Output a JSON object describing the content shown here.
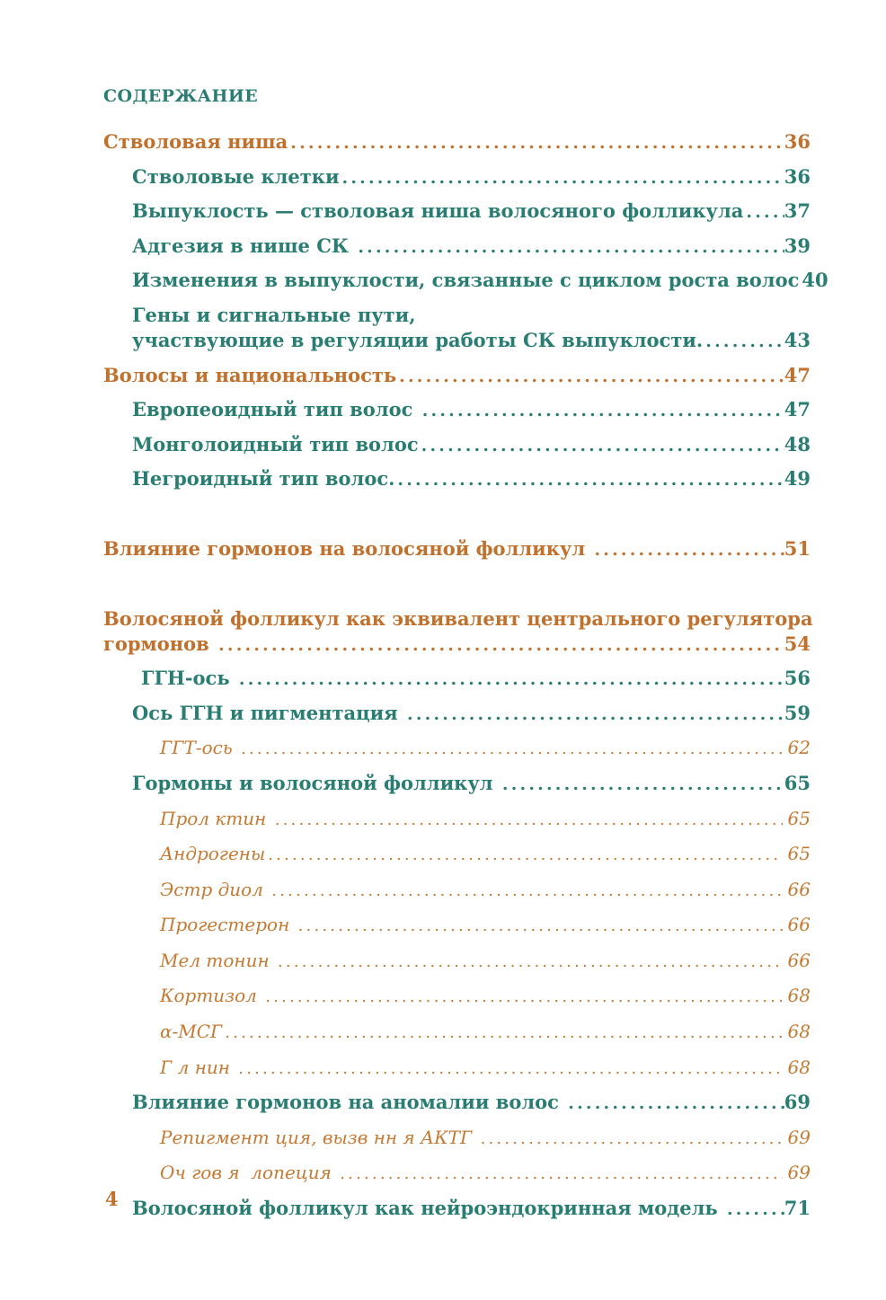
{
  "header": {
    "title": "СОДЕРЖАНИЕ"
  },
  "footer": {
    "page_number": "4"
  },
  "colors": {
    "paper": "#ffffff",
    "chapter_orange": "#c0712d",
    "section_teal": "#2a7d72",
    "subitem_orange": "#c57a33"
  },
  "toc": [
    {
      "level": 1,
      "title": "Стволовая ниша",
      "page": "36"
    },
    {
      "level": 2,
      "title": "Стволовые клетки",
      "page": "36"
    },
    {
      "level": 2,
      "title": "Выпуклость — стволовая ниша волосяного фолликула",
      "page": "37"
    },
    {
      "level": 2,
      "title": "Адгезия в нише СК ",
      "page": "39"
    },
    {
      "level": 2,
      "title": "Изменения в выпуклости, связанные с циклом роста волос",
      "page": "40"
    },
    {
      "level": 2,
      "lines": [
        "Гены и сигнальные пути,"
      ],
      "title": "участвующие в регуляции работы СК выпуклости.",
      "page": "43"
    },
    {
      "level": 1,
      "title": "Волосы и национальность",
      "page": "47"
    },
    {
      "level": 2,
      "title": "Европеоидный тип волос ",
      "page": "47"
    },
    {
      "level": 2,
      "title": "Монголоидный тип волос",
      "page": "48"
    },
    {
      "level": 2,
      "title": "Негроидный тип волос.",
      "page": "49"
    },
    {
      "spacer": true
    },
    {
      "level": 1,
      "title": "Влияние гормонов на волосяной фолликул ",
      "page": "51"
    },
    {
      "spacer": true
    },
    {
      "level": 1,
      "lines": [
        "Волосяной фолликул как эквивалент центрального регулятора"
      ],
      "title": "гормонов ",
      "page": "54"
    },
    {
      "level": 2,
      "shift": true,
      "title": "ГГН-ось ",
      "page": "56"
    },
    {
      "level": 2,
      "title": "Ось ГГН и пигментация ",
      "page": "59"
    },
    {
      "level": 3,
      "title": "ГГТ-ось ",
      "page": "62"
    },
    {
      "level": 2,
      "title": "Гормоны и волосяной фолликул ",
      "page": "65"
    },
    {
      "level": 3,
      "title": "Прол ктин ",
      "page": "65"
    },
    {
      "level": 3,
      "title": "Андрогены",
      "page": "65"
    },
    {
      "level": 3,
      "title": "Эстр диол ",
      "page": "66"
    },
    {
      "level": 3,
      "title": "Прогестерон ",
      "page": "66"
    },
    {
      "level": 3,
      "title": "Мел тонин ",
      "page": "66"
    },
    {
      "level": 3,
      "title": "Кортизол ",
      "page": "68"
    },
    {
      "level": 3,
      "title": "α-МСГ",
      "page": "68"
    },
    {
      "level": 3,
      "title": "Г л нин ",
      "page": "68"
    },
    {
      "level": 2,
      "title": "Влияние гормонов на аномалии волос ",
      "page": "69"
    },
    {
      "level": 3,
      "title": "Репигмент ция, вызв нн я АКТГ ",
      "page": "69"
    },
    {
      "level": 3,
      "title": "Оч гов я  лопеция ",
      "page": "69"
    },
    {
      "level": 2,
      "title": "Волосяной фолликул как нейроэндокринная модель ",
      "page": "71"
    }
  ]
}
